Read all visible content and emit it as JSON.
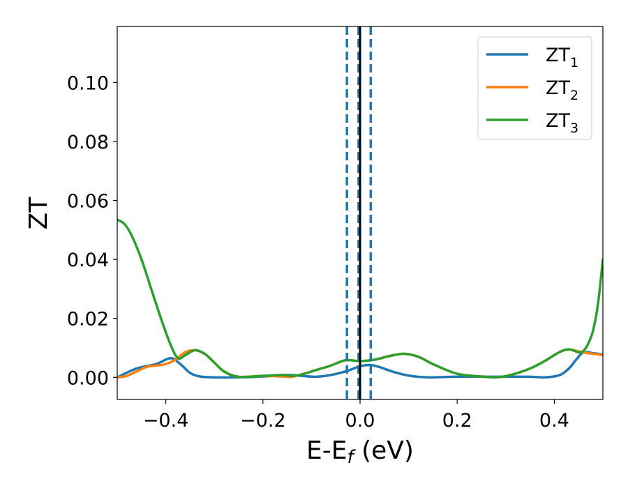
{
  "chart_data": {
    "type": "line",
    "title": "",
    "xlabel": {
      "main": "E-E",
      "sub": "f",
      "unit": " (eV)"
    },
    "ylabel": "ZT",
    "xlim": [
      -0.5,
      0.5
    ],
    "ylim": [
      -0.0075,
      0.119
    ],
    "xticks": [
      -0.4,
      -0.2,
      0.0,
      0.2,
      0.4
    ],
    "xtick_labels": [
      "−0.4",
      "−0.2",
      "0.0",
      "0.2",
      "0.4"
    ],
    "yticks": [
      0.0,
      0.02,
      0.04,
      0.06,
      0.08,
      0.1
    ],
    "ytick_labels": [
      "0.00",
      "0.02",
      "0.04",
      "0.06",
      "0.08",
      "0.10"
    ],
    "grid": false,
    "legend_position": "top-right",
    "colors": {
      "zt1": "#1f77b4",
      "zt2": "#ff7f0e",
      "zt3": "#2ca02c",
      "fermi": "#000000"
    },
    "vlines": [
      {
        "x": -0.027,
        "style": "dashed",
        "color": "#1f77b4"
      },
      {
        "x": -0.003,
        "style": "dashed",
        "color": "#1f77b4"
      },
      {
        "x": 0.0,
        "style": "solid",
        "color": "#000000"
      },
      {
        "x": 0.022,
        "style": "dashed",
        "color": "#1f77b4"
      }
    ],
    "series": [
      {
        "name": "ZT",
        "sub": "1",
        "color": "#1f77b4",
        "points": [
          [
            -0.5,
            0.0
          ],
          [
            -0.46,
            0.003
          ],
          [
            -0.42,
            0.0045
          ],
          [
            -0.39,
            0.0065
          ],
          [
            -0.37,
            0.0045
          ],
          [
            -0.35,
            0.0015
          ],
          [
            -0.33,
            0.0003
          ],
          [
            -0.3,
            0.0
          ],
          [
            -0.25,
            0.0
          ],
          [
            -0.2,
            0.0003
          ],
          [
            -0.15,
            0.0008
          ],
          [
            -0.12,
            0.0005
          ],
          [
            -0.09,
            0.0002
          ],
          [
            -0.06,
            0.0008
          ],
          [
            -0.03,
            0.002
          ],
          [
            -0.01,
            0.0032
          ],
          [
            0.0,
            0.0038
          ],
          [
            0.02,
            0.0042
          ],
          [
            0.04,
            0.0035
          ],
          [
            0.07,
            0.0018
          ],
          [
            0.1,
            0.0006
          ],
          [
            0.14,
            0.0
          ],
          [
            0.2,
            0.0002
          ],
          [
            0.28,
            0.0002
          ],
          [
            0.35,
            0.0002
          ],
          [
            0.38,
            0.0
          ],
          [
            0.41,
            0.0007
          ],
          [
            0.43,
            0.003
          ],
          [
            0.445,
            0.006
          ],
          [
            0.46,
            0.0085
          ],
          [
            0.48,
            0.0082
          ],
          [
            0.5,
            0.0078
          ]
        ]
      },
      {
        "name": "ZT",
        "sub": "2",
        "color": "#ff7f0e",
        "points": [
          [
            -0.5,
            0.0
          ],
          [
            -0.48,
            0.0005
          ],
          [
            -0.46,
            0.002
          ],
          [
            -0.44,
            0.0035
          ],
          [
            -0.42,
            0.004
          ],
          [
            -0.4,
            0.0045
          ],
          [
            -0.38,
            0.006
          ],
          [
            -0.36,
            0.0085
          ],
          [
            -0.34,
            0.0092
          ],
          [
            -0.32,
            0.008
          ],
          [
            -0.3,
            0.005
          ],
          [
            -0.28,
            0.002
          ],
          [
            -0.25,
            0.0002
          ],
          [
            -0.2,
            0.0005
          ],
          [
            -0.16,
            0.0003
          ],
          [
            -0.14,
            0.0002
          ],
          [
            -0.12,
            0.001
          ],
          [
            -0.09,
            0.0025
          ],
          [
            -0.06,
            0.004
          ],
          [
            -0.03,
            0.0058
          ],
          [
            0.0,
            0.0055
          ],
          [
            0.03,
            0.006
          ],
          [
            0.06,
            0.0072
          ],
          [
            0.09,
            0.008
          ],
          [
            0.12,
            0.007
          ],
          [
            0.15,
            0.0045
          ],
          [
            0.2,
            0.0012
          ],
          [
            0.25,
            0.0003
          ],
          [
            0.28,
            0.0
          ],
          [
            0.31,
            0.0008
          ],
          [
            0.35,
            0.003
          ],
          [
            0.38,
            0.0055
          ],
          [
            0.41,
            0.0085
          ],
          [
            0.43,
            0.0095
          ],
          [
            0.45,
            0.0088
          ],
          [
            0.47,
            0.0082
          ],
          [
            0.49,
            0.0078
          ],
          [
            0.5,
            0.0075
          ]
        ]
      },
      {
        "name": "ZT",
        "sub": "3",
        "color": "#2ca02c",
        "points": [
          [
            -0.5,
            0.0535
          ],
          [
            -0.485,
            0.052
          ],
          [
            -0.47,
            0.048
          ],
          [
            -0.45,
            0.04
          ],
          [
            -0.43,
            0.03
          ],
          [
            -0.41,
            0.02
          ],
          [
            -0.39,
            0.011
          ],
          [
            -0.375,
            0.0065
          ],
          [
            -0.36,
            0.0075
          ],
          [
            -0.34,
            0.0092
          ],
          [
            -0.32,
            0.008
          ],
          [
            -0.3,
            0.005
          ],
          [
            -0.28,
            0.002
          ],
          [
            -0.25,
            0.0002
          ],
          [
            -0.2,
            0.0005
          ],
          [
            -0.16,
            0.0008
          ],
          [
            -0.14,
            0.0005
          ],
          [
            -0.12,
            0.001
          ],
          [
            -0.09,
            0.0025
          ],
          [
            -0.06,
            0.004
          ],
          [
            -0.03,
            0.0058
          ],
          [
            0.0,
            0.0055
          ],
          [
            0.03,
            0.006
          ],
          [
            0.06,
            0.0072
          ],
          [
            0.09,
            0.008
          ],
          [
            0.12,
            0.007
          ],
          [
            0.15,
            0.0045
          ],
          [
            0.2,
            0.0012
          ],
          [
            0.25,
            0.0003
          ],
          [
            0.28,
            0.0
          ],
          [
            0.31,
            0.0008
          ],
          [
            0.35,
            0.003
          ],
          [
            0.38,
            0.0055
          ],
          [
            0.41,
            0.0085
          ],
          [
            0.43,
            0.0095
          ],
          [
            0.45,
            0.0085
          ],
          [
            0.46,
            0.009
          ],
          [
            0.47,
            0.0115
          ],
          [
            0.48,
            0.016
          ],
          [
            0.49,
            0.025
          ],
          [
            0.5,
            0.04
          ]
        ]
      }
    ]
  }
}
